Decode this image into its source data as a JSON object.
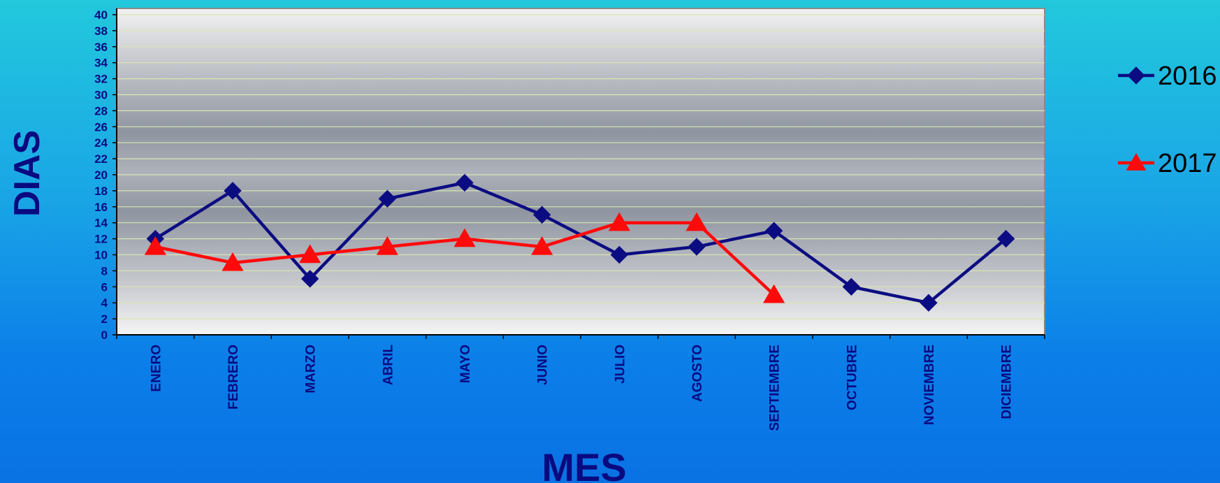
{
  "chart_data": {
    "type": "line",
    "xlabel": "MES",
    "ylabel": "DIAS",
    "ylim": [
      0,
      40
    ],
    "yticks": [
      0,
      2,
      4,
      6,
      8,
      10,
      12,
      14,
      16,
      18,
      20,
      22,
      24,
      26,
      28,
      30,
      32,
      34,
      36,
      38,
      40
    ],
    "grid": true,
    "legend_position": "right",
    "categories": [
      "ENERO",
      "FEBRERO",
      "MARZO",
      "ABRIL",
      "MAYO",
      "JUNIO",
      "JULIO",
      "AGOSTO",
      "SEPTIEMBRE",
      "OCTUBRE",
      "NOVIEMBRE",
      "DICIEMBRE"
    ],
    "series": [
      {
        "name": "2016",
        "color": "#0c0c82",
        "marker": "diamond",
        "values": [
          12,
          18,
          7,
          17,
          19,
          15,
          10,
          11,
          13,
          6,
          4,
          12
        ]
      },
      {
        "name": "2017",
        "color": "#ff0a0a",
        "marker": "triangle",
        "values": [
          11,
          9,
          10,
          11,
          12,
          11,
          14,
          14,
          5,
          null,
          null,
          null
        ]
      }
    ]
  }
}
